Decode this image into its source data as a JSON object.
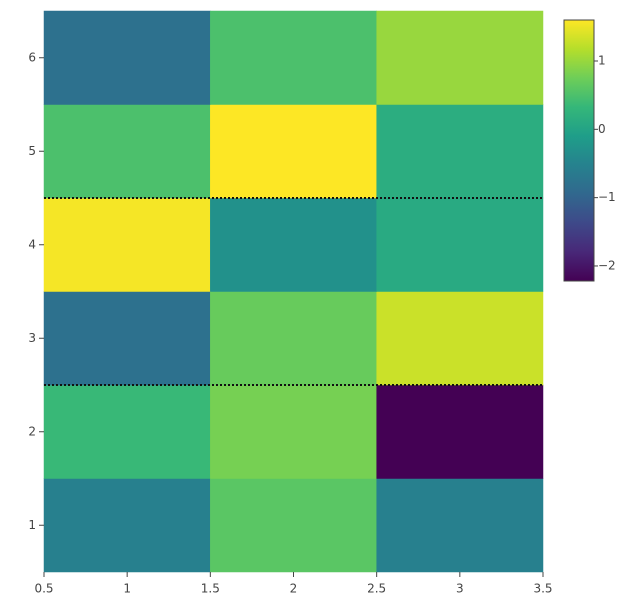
{
  "chart_data": {
    "type": "heatmap",
    "x": [
      1,
      2,
      3
    ],
    "y": [
      1,
      2,
      3,
      4,
      5,
      6
    ],
    "z": [
      [
        -0.55,
        0.6,
        -0.55
      ],
      [
        0.35,
        0.8,
        -2.22
      ],
      [
        -0.8,
        0.7,
        1.3
      ],
      [
        1.55,
        -0.3,
        0.1
      ],
      [
        0.5,
        1.6,
        0.15
      ],
      [
        -0.8,
        0.5,
        1.0
      ]
    ],
    "colorscale": "Viridis",
    "zlim": [
      -2.22,
      1.6
    ],
    "cticks": [
      {
        "value": -2,
        "label": "−2"
      },
      {
        "value": -1,
        "label": "−1"
      },
      0,
      1
    ],
    "xlim": [
      0.5,
      3.5
    ],
    "xticks": [
      0.5,
      1,
      1.5,
      2,
      2.5,
      3,
      3.5
    ],
    "ylim": [
      0.5,
      6.5
    ],
    "yticks": [
      1,
      2,
      3,
      4,
      5,
      6
    ],
    "hlines": [
      2.5,
      4.5
    ]
  }
}
